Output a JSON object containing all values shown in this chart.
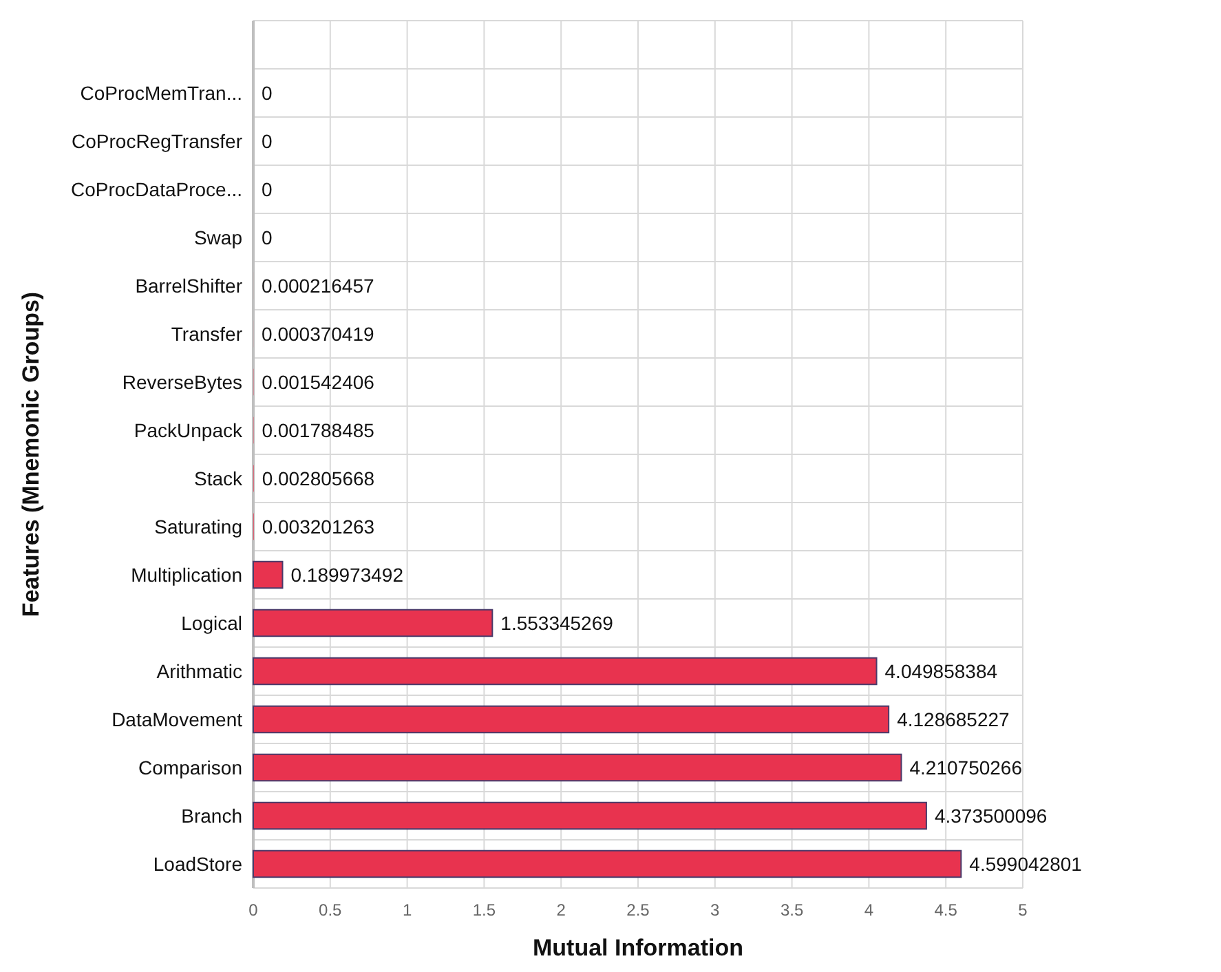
{
  "chart_data": {
    "type": "bar",
    "orientation": "horizontal",
    "xlabel": "Mutual Information",
    "ylabel": "Features (Mnemonic Groups)",
    "categories": [
      null,
      "CoProcMemTran...",
      "CoProcRegTransfer",
      "CoProcDataProce...",
      "Swap",
      "BarrelShifter",
      "Transfer",
      "ReverseBytes",
      "PackUnpack",
      "Stack",
      "Saturating",
      "Multiplication",
      "Logical",
      "Arithmatic",
      "DataMovement",
      "Comparison",
      "Branch",
      "LoadStore"
    ],
    "values": [
      null,
      0,
      0,
      0,
      0,
      0.000216457,
      0.000370419,
      0.001542406,
      0.001788485,
      0.002805668,
      0.003201263,
      0.189973492,
      1.553345269,
      4.049858384,
      4.128685227,
      4.210750266,
      4.373500096,
      4.599042801
    ],
    "color": "#e8334f",
    "xlim": [
      0,
      5
    ],
    "xticks": [
      0,
      0.5,
      1,
      1.5,
      2,
      2.5,
      3,
      3.5,
      4,
      4.5,
      5
    ],
    "grid": true,
    "data_labels": true
  }
}
